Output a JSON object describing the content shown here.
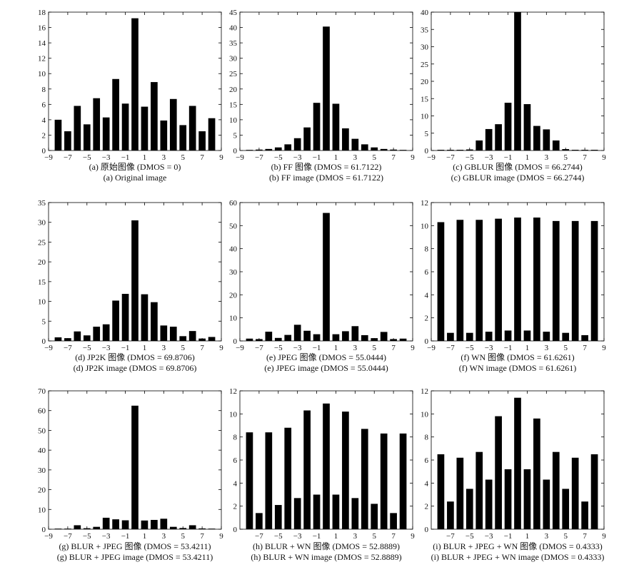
{
  "charts": [
    {
      "type": "bar",
      "caption_cn": "(a) 原始图像 (DMOS = 0)",
      "caption_en": "(a) Original image",
      "xticks": [
        -9,
        -7,
        -5,
        -3,
        -1,
        1,
        3,
        5,
        7,
        9
      ],
      "yticks": [
        0,
        2,
        4,
        6,
        8,
        10,
        12,
        14,
        16,
        18
      ],
      "xlim": [
        -9,
        9
      ],
      "ylim": [
        0,
        18
      ],
      "x": [
        -8,
        -7,
        -6,
        -5,
        -4,
        -3,
        -2,
        -1,
        0,
        1,
        2,
        3,
        4,
        5,
        6,
        7,
        8
      ],
      "values": [
        4.0,
        2.5,
        5.8,
        3.4,
        6.8,
        4.3,
        9.3,
        6.1,
        17.2,
        5.7,
        8.9,
        3.9,
        6.7,
        3.3,
        5.8,
        2.5,
        4.2
      ]
    },
    {
      "type": "bar",
      "caption_cn": "(b) FF 图像 (DMOS = 61.7122)",
      "caption_en": "(b) FF image (DMOS = 61.7122)",
      "xticks": [
        -9,
        -7,
        -5,
        -3,
        -1,
        1,
        3,
        5,
        7,
        9
      ],
      "yticks": [
        0,
        5,
        10,
        15,
        20,
        25,
        30,
        35,
        40,
        45
      ],
      "xlim": [
        -9,
        9
      ],
      "ylim": [
        0,
        45
      ],
      "x": [
        -8,
        -7,
        -6,
        -5,
        -4,
        -3,
        -2,
        -1,
        0,
        1,
        2,
        3,
        4,
        5,
        6,
        7,
        8
      ],
      "values": [
        0.2,
        0.3,
        0.5,
        1.0,
        2.0,
        4.0,
        7.5,
        15.5,
        40.3,
        15.2,
        7.2,
        3.8,
        2.0,
        1.0,
        0.5,
        0.3,
        0.2
      ]
    },
    {
      "type": "bar",
      "caption_cn": "(c) GBLUR 图像 (DMOS = 66.2744)",
      "caption_en": "(c) GBLUR image (DMOS = 66.2744)",
      "xticks": [
        -9,
        -7,
        -5,
        -3,
        -1,
        1,
        3,
        5,
        7,
        9
      ],
      "yticks": [
        0,
        5,
        10,
        15,
        20,
        25,
        30,
        35,
        40
      ],
      "xlim": [
        -9,
        9
      ],
      "ylim": [
        0,
        40
      ],
      "x": [
        -8,
        -7,
        -6,
        -5,
        -4,
        -3,
        -2,
        -1,
        0,
        1,
        2,
        3,
        4,
        5,
        6,
        7,
        8
      ],
      "values": [
        0.2,
        0.2,
        0.2,
        0.3,
        2.9,
        6.2,
        7.6,
        13.8,
        40.0,
        13.4,
        7.1,
        6.1,
        2.9,
        0.4,
        0.2,
        0.2,
        0.2
      ]
    },
    {
      "type": "bar",
      "caption_cn": "(d) JP2K 图像 (DMOS = 69.8706)",
      "caption_en": "(d) JP2K image (DMOS = 69.8706)",
      "xticks": [
        -9,
        -7,
        -5,
        -3,
        -1,
        1,
        3,
        5,
        7,
        9
      ],
      "yticks": [
        0,
        5,
        10,
        15,
        20,
        25,
        30,
        35
      ],
      "xlim": [
        -9,
        9
      ],
      "ylim": [
        0,
        35
      ],
      "x": [
        -8,
        -7,
        -6,
        -5,
        -4,
        -3,
        -2,
        -1,
        0,
        1,
        2,
        3,
        4,
        5,
        6,
        7,
        8
      ],
      "values": [
        0.9,
        0.7,
        2.4,
        1.4,
        3.6,
        4.2,
        10.2,
        11.9,
        30.5,
        11.8,
        9.8,
        3.9,
        3.6,
        1.2,
        2.5,
        0.6,
        1.0
      ]
    },
    {
      "type": "bar",
      "caption_cn": "(e) JPEG 图像 (DMOS = 55.0444)",
      "caption_en": "(e) JPEG image (DMOS = 55.0444)",
      "xticks": [
        -9,
        -7,
        -5,
        -3,
        -1,
        1,
        3,
        5,
        7,
        9
      ],
      "yticks": [
        0,
        10,
        20,
        30,
        40,
        50,
        60
      ],
      "xlim": [
        -9,
        9
      ],
      "ylim": [
        0,
        60
      ],
      "x": [
        -8,
        -7,
        -6,
        -5,
        -4,
        -3,
        -2,
        -1,
        0,
        1,
        2,
        3,
        4,
        5,
        6,
        7,
        8
      ],
      "values": [
        1.0,
        0.8,
        4.0,
        1.3,
        2.6,
        7.0,
        4.4,
        2.9,
        55.5,
        2.9,
        4.2,
        6.4,
        2.5,
        1.2,
        3.9,
        0.8,
        1.0
      ]
    },
    {
      "type": "bar",
      "caption_cn": "(f) WN 图像 (DMOS = 61.6261)",
      "caption_en": "(f) WN image (DMOS = 61.6261)",
      "xticks": [
        -9,
        -7,
        -5,
        -3,
        -1,
        1,
        3,
        5,
        7,
        9
      ],
      "yticks": [
        0,
        2,
        4,
        6,
        8,
        10,
        12
      ],
      "xlim": [
        -9,
        9
      ],
      "ylim": [
        0,
        12
      ],
      "x": [
        -8,
        -7,
        -6,
        -5,
        -4,
        -3,
        -2,
        -1,
        0,
        1,
        2,
        3,
        4,
        5,
        6,
        7,
        8
      ],
      "values": [
        10.3,
        0.7,
        10.5,
        0.7,
        10.5,
        0.8,
        10.6,
        0.9,
        10.7,
        0.9,
        10.7,
        0.8,
        10.4,
        0.7,
        10.4,
        0.5,
        10.4
      ]
    },
    {
      "type": "bar",
      "caption_cn": "(g) BLUR + JPEG 图像 (DMOS = 53.4211)",
      "caption_en": "(g) BLUR + JPEG image (DMOS = 53.4211)",
      "xticks": [
        -9,
        -7,
        -5,
        -3,
        -1,
        1,
        3,
        5,
        7,
        9
      ],
      "yticks": [
        0,
        10,
        20,
        30,
        40,
        50,
        60,
        70
      ],
      "xlim": [
        -9,
        9
      ],
      "ylim": [
        0,
        70
      ],
      "x": [
        -8,
        -7,
        -6,
        -5,
        -4,
        -3,
        -2,
        -1,
        0,
        1,
        2,
        3,
        4,
        5,
        6,
        7,
        8
      ],
      "values": [
        0.3,
        0.3,
        2.0,
        0.5,
        1.2,
        5.8,
        5.0,
        4.5,
        62.5,
        4.4,
        4.7,
        5.3,
        1.2,
        0.6,
        2.0,
        0.4,
        0.3
      ]
    },
    {
      "type": "bar",
      "caption_cn": "(h) BLUR + WN 图像 (DMOS = 52.8889)",
      "caption_en": "(h) BLUR + WN image (DMOS = 52.8889)",
      "xticks": [
        -7,
        -5,
        -3,
        -1,
        1,
        3,
        5,
        7,
        9
      ],
      "yticks": [
        0,
        2,
        4,
        6,
        8,
        10,
        12
      ],
      "xlim": [
        -9,
        9
      ],
      "ylim": [
        0,
        12
      ],
      "x": [
        -8,
        -7,
        -6,
        -5,
        -4,
        -3,
        -2,
        -1,
        0,
        1,
        2,
        3,
        4,
        5,
        6,
        7,
        8
      ],
      "values": [
        8.4,
        1.4,
        8.4,
        2.1,
        8.8,
        2.7,
        10.3,
        3.0,
        10.9,
        3.0,
        10.2,
        2.7,
        8.7,
        2.2,
        8.3,
        1.4,
        8.3
      ]
    },
    {
      "type": "bar",
      "caption_cn": "(i) BLUR + JPEG + WN 图像 (DMOS = 0.4333)",
      "caption_en": "(i) BLUR + JPEG + WN image (DMOS = 0.4333)",
      "xticks": [
        -7,
        -5,
        -3,
        -1,
        1,
        3,
        5,
        7,
        9
      ],
      "yticks": [
        0,
        2,
        4,
        6,
        8,
        10,
        12
      ],
      "xlim": [
        -9,
        9
      ],
      "ylim": [
        0,
        12
      ],
      "x": [
        -8,
        -7,
        -6,
        -5,
        -4,
        -3,
        -2,
        -1,
        0,
        1,
        2,
        3,
        4,
        5,
        6,
        7,
        8
      ],
      "values": [
        6.5,
        2.4,
        6.2,
        3.5,
        6.7,
        4.3,
        9.8,
        5.2,
        11.4,
        5.2,
        9.6,
        4.3,
        6.7,
        3.5,
        6.2,
        2.4,
        6.5
      ]
    }
  ]
}
